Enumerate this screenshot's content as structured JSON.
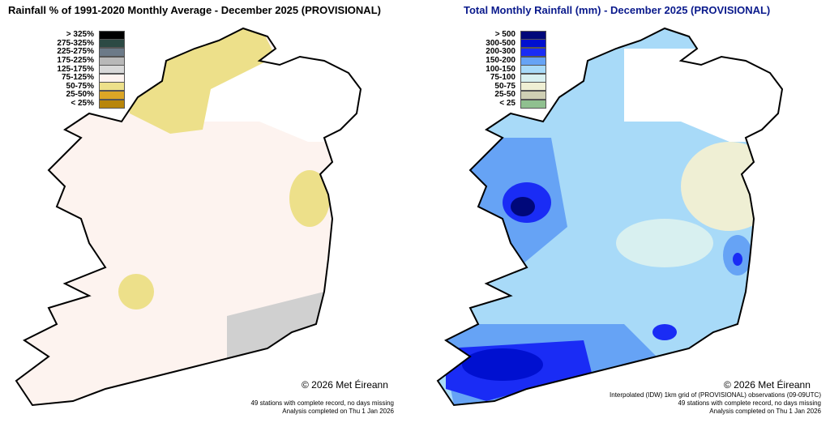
{
  "left_map": {
    "title": "Rainfall % of  1991-2020  Monthly Average - December 2025  (PROVISIONAL)",
    "legend": [
      {
        "label": "> 325%",
        "color": "#000000"
      },
      {
        "label": "275-325%",
        "color": "#2c4a44"
      },
      {
        "label": "225-275%",
        "color": "#6c7a88"
      },
      {
        "label": "175-225%",
        "color": "#b8b8b8"
      },
      {
        "label": "125-175%",
        "color": "#d8d8d8"
      },
      {
        "label": "75-125%",
        "color": "#fdf3ef"
      },
      {
        "label": "50-75%",
        "color": "#ede08a"
      },
      {
        "label": "25-50%",
        "color": "#dca626"
      },
      {
        "label": "< 25%",
        "color": "#b8860b"
      }
    ],
    "copyright": "© 2026 Met Éireann",
    "footer": [
      "49 stations with complete record, no days missing",
      "Analysis completed on Thu 1 Jan 2026"
    ]
  },
  "right_map": {
    "title": "Total Monthly Rainfall (mm) - December 2025  (PROVISIONAL)",
    "legend": [
      {
        "label": "> 500",
        "color": "#00087a"
      },
      {
        "label": "300-500",
        "color": "#0010d0"
      },
      {
        "label": "200-300",
        "color": "#1a2cf5"
      },
      {
        "label": "150-200",
        "color": "#66a3f5"
      },
      {
        "label": "100-150",
        "color": "#a8daf8"
      },
      {
        "label": "75-100",
        "color": "#d8f0f0"
      },
      {
        "label": "50-75",
        "color": "#efefd4"
      },
      {
        "label": "25-50",
        "color": "#cfcfb4"
      },
      {
        "label": "< 25",
        "color": "#8fc08f"
      }
    ],
    "copyright": "© 2026 Met Éireann",
    "footer": [
      "Interpolated (IDW) 1km grid of  (PROVISIONAL) observations (09-09UTC)",
      "49 stations with complete record, no days missing",
      "Analysis completed on Thu 1 Jan 2026"
    ]
  }
}
